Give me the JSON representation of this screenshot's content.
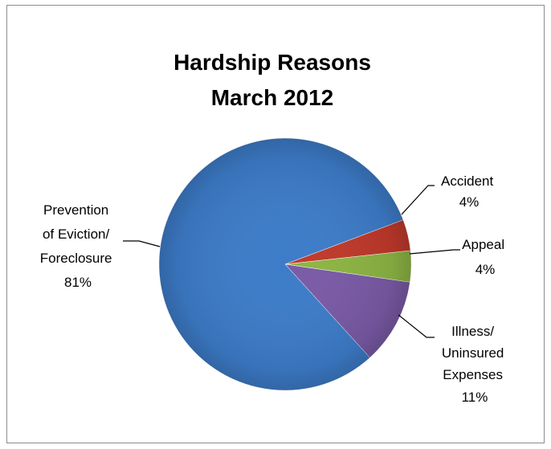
{
  "chart_data": {
    "type": "pie",
    "title_lines": [
      "Hardship Reasons",
      "March 2012"
    ],
    "slices": [
      {
        "label_lines": [
          "Accident",
          "4%"
        ],
        "value": 4,
        "color": "#c0392b"
      },
      {
        "label_lines": [
          "Appeal",
          "4%"
        ],
        "value": 4,
        "color": "#8db543"
      },
      {
        "label_lines": [
          "Illness/",
          "Uninsured",
          "Expenses",
          "11%"
        ],
        "value": 11,
        "color": "#7a5aa6"
      },
      {
        "label_lines": [
          "Prevention",
          "of Eviction/",
          "Foreclosure",
          "81%"
        ],
        "value": 81,
        "color": "#3d7cc9"
      }
    ],
    "legend": "none"
  }
}
